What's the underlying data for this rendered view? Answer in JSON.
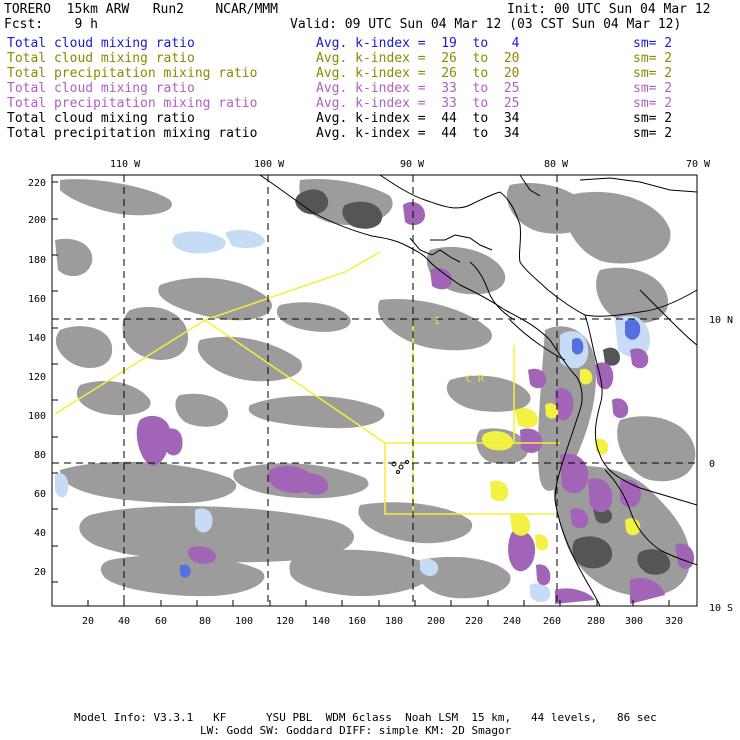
{
  "header": {
    "title": "TORERO  15km ARW   Run2    NCAR/MMM",
    "init": "Init: 00 UTC Sun 04 Mar 12",
    "fcst": "Fcst:    9 h",
    "valid": "Valid: 09 UTC Sun 04 Mar 12 (03 CST Sun 04 Mar 12)"
  },
  "legend": [
    {
      "field": "Total cloud mixing ratio",
      "index": "Avg. k-index =  19  to   4",
      "sm": "sm= 2",
      "color": "#1a1acc"
    },
    {
      "field": "Total cloud mixing ratio",
      "index": "Avg. k-index =  26  to  20",
      "sm": "sm= 2",
      "color": "#8c8a00"
    },
    {
      "field": "Total precipitation mixing ratio",
      "index": "Avg. k-index =  26  to  20",
      "sm": "sm= 2",
      "color": "#8c8a00"
    },
    {
      "field": "Total cloud mixing ratio",
      "index": "Avg. k-index =  33  to  25",
      "sm": "sm= 2",
      "color": "#b060c0"
    },
    {
      "field": "Total precipitation mixing ratio",
      "index": "Avg. k-index =  33  to  25",
      "sm": "sm= 2",
      "color": "#b060c0"
    },
    {
      "field": "Total cloud mixing ratio",
      "index": "Avg. k-index =  44  to  34",
      "sm": "sm= 2",
      "color": "#000000"
    },
    {
      "field": "Total precipitation mixing ratio",
      "index": "Avg. k-index =  44  to  34",
      "sm": "sm= 2",
      "color": "#000000"
    }
  ],
  "axes": {
    "lon_labels": [
      "110 W",
      "100 W",
      "90 W",
      "80 W",
      "70 W"
    ],
    "lat_labels": [
      "10 N",
      "0",
      "10 S"
    ],
    "y_ticks": [
      "220",
      "200",
      "180",
      "160",
      "140",
      "120",
      "100",
      "80",
      "60",
      "40",
      "20"
    ],
    "x_ticks": [
      "20",
      "40",
      "60",
      "80",
      "100",
      "120",
      "140",
      "160",
      "180",
      "200",
      "220",
      "240",
      "260",
      "280",
      "300",
      "320"
    ]
  },
  "map_labels": {
    "i": "I",
    "cr": "C  R"
  },
  "colors": {
    "cloud_gray": "#9c9c9c",
    "dark_gray": "#555555",
    "blue_light": "#c6dcf6",
    "magenta": "#a264b6",
    "yellow": "#f2f244",
    "outline_yellow": "#f6ee3a",
    "border": "#000000"
  },
  "footer": {
    "line1": "Model Info: V3.3.1   KF      YSU PBL  WDM 6class  Noah LSM  15 km,   44 levels,   86 sec",
    "line2": "LW: Godd SW: Goddard DIFF: simple KM: 2D Smagor"
  }
}
